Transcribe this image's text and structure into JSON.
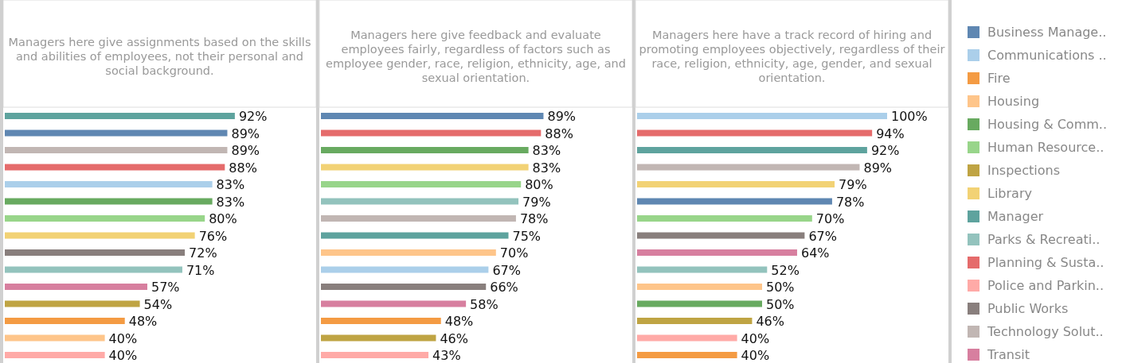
{
  "chart_data": [
    {
      "type": "bar",
      "orientation": "horizontal",
      "title": "Managers here give assignments based on the skills and abilities of employees, not their personal and social background.",
      "categories": [
        null,
        null,
        null,
        null,
        null,
        null,
        null,
        null,
        null,
        null,
        null,
        null,
        null,
        null,
        null
      ],
      "values": [
        92,
        89,
        89,
        88,
        83,
        83,
        80,
        76,
        72,
        71,
        57,
        54,
        48,
        40,
        40
      ],
      "value_labels": [
        "92%",
        "89%",
        "89%",
        "88%",
        "83%",
        "83%",
        "80%",
        "76%",
        "72%",
        "71%",
        "57%",
        "54%",
        "48%",
        "40%",
        "40%"
      ],
      "colors": [
        "#5ea39e",
        "#5f87b2",
        "#c1b6b3",
        "#e56b6b",
        "#abcfea",
        "#68aa60",
        "#98d58a",
        "#f2d275",
        "#897f7d",
        "#93c3bd",
        "#d77f9f",
        "#bfa443",
        "#f49b43",
        "#fec58a",
        "#ffaaa7"
      ]
    },
    {
      "type": "bar",
      "orientation": "horizontal",
      "title": "Managers here give feedback and evaluate employees fairly, regardless of factors such as employee gender, race, religion, ethnicity, age, and sexual orientation.",
      "categories": [
        null,
        null,
        null,
        null,
        null,
        null,
        null,
        null,
        null,
        null,
        null,
        null,
        null,
        null,
        null
      ],
      "values": [
        89,
        88,
        83,
        83,
        80,
        79,
        78,
        75,
        70,
        67,
        66,
        58,
        48,
        46,
        43
      ],
      "value_labels": [
        "89%",
        "88%",
        "83%",
        "83%",
        "80%",
        "79%",
        "78%",
        "75%",
        "70%",
        "67%",
        "66%",
        "58%",
        "48%",
        "46%",
        "43%"
      ],
      "colors": [
        "#5f87b2",
        "#e56b6b",
        "#68aa60",
        "#f2d275",
        "#98d58a",
        "#93c3bd",
        "#c1b6b3",
        "#5ea39e",
        "#fec58a",
        "#abcfea",
        "#897f7d",
        "#d77f9f",
        "#f49b43",
        "#bfa443",
        "#ffaaa7"
      ]
    },
    {
      "type": "bar",
      "orientation": "horizontal",
      "title": "Managers here have a track record of hiring and promoting employees objectively, regardless of their race, religion, ethnicity, age, gender, and sexual orientation.",
      "categories": [
        null,
        null,
        null,
        null,
        null,
        null,
        null,
        null,
        null,
        null,
        null,
        null,
        null,
        null,
        null
      ],
      "legend": "right",
      "series": [
        {
          "name": "Business Manage..",
          "color": "#5f87b2",
          "values": [
            null,
            null,
            null,
            null,
            null,
            78,
            null,
            null,
            null,
            null,
            null,
            null,
            null,
            null,
            null
          ],
          "value_labels": [
            null,
            null,
            null,
            null,
            null,
            "78%",
            null,
            null,
            null,
            null,
            null,
            null,
            null,
            null,
            null
          ]
        },
        {
          "name": "Communications ..",
          "color": "#abcfea",
          "values": [
            100,
            null,
            null,
            null,
            null,
            null,
            null,
            null,
            null,
            null,
            null,
            null,
            null,
            null,
            null
          ],
          "value_labels": [
            "100%",
            null,
            null,
            null,
            null,
            null,
            null,
            null,
            null,
            null,
            null,
            null,
            null,
            null,
            null
          ]
        },
        {
          "name": "Fire",
          "color": "#f49b43",
          "values": [
            null,
            null,
            null,
            null,
            null,
            null,
            null,
            null,
            null,
            null,
            null,
            null,
            null,
            null,
            40
          ],
          "value_labels": [
            null,
            null,
            null,
            null,
            null,
            null,
            null,
            null,
            null,
            null,
            null,
            null,
            null,
            null,
            "40%"
          ]
        },
        {
          "name": "Housing",
          "color": "#fec58a",
          "values": [
            null,
            null,
            null,
            null,
            null,
            null,
            null,
            null,
            null,
            null,
            50,
            null,
            null,
            null,
            null
          ],
          "value_labels": [
            null,
            null,
            null,
            null,
            null,
            null,
            null,
            null,
            null,
            null,
            "50%",
            null,
            null,
            null,
            null
          ]
        },
        {
          "name": "Housing & Comm..",
          "color": "#68aa60",
          "values": [
            null,
            null,
            null,
            null,
            null,
            null,
            null,
            null,
            null,
            null,
            null,
            50,
            null,
            null,
            null
          ],
          "value_labels": [
            null,
            null,
            null,
            null,
            null,
            null,
            null,
            null,
            null,
            null,
            null,
            "50%",
            null,
            null,
            null
          ]
        },
        {
          "name": "Human Resource..",
          "color": "#98d58a",
          "values": [
            null,
            null,
            null,
            null,
            null,
            null,
            70,
            null,
            null,
            null,
            null,
            null,
            null,
            null,
            null
          ],
          "value_labels": [
            null,
            null,
            null,
            null,
            null,
            null,
            "70%",
            null,
            null,
            null,
            null,
            null,
            null,
            null,
            null
          ]
        },
        {
          "name": "Inspections",
          "color": "#bfa443",
          "values": [
            null,
            null,
            null,
            null,
            null,
            null,
            null,
            null,
            null,
            null,
            null,
            null,
            46,
            null,
            null
          ],
          "value_labels": [
            null,
            null,
            null,
            null,
            null,
            null,
            null,
            null,
            null,
            null,
            null,
            null,
            "46%",
            null,
            null
          ]
        },
        {
          "name": "Library",
          "color": "#f2d275",
          "values": [
            null,
            null,
            null,
            null,
            79,
            null,
            null,
            null,
            null,
            null,
            null,
            null,
            null,
            null,
            null
          ],
          "value_labels": [
            null,
            null,
            null,
            null,
            "79%",
            null,
            null,
            null,
            null,
            null,
            null,
            null,
            null,
            null,
            null
          ]
        },
        {
          "name": "Manager",
          "color": "#5ea39e",
          "values": [
            null,
            null,
            92,
            null,
            null,
            null,
            null,
            null,
            null,
            null,
            null,
            null,
            null,
            null,
            null
          ],
          "value_labels": [
            null,
            null,
            "92%",
            null,
            null,
            null,
            null,
            null,
            null,
            null,
            null,
            null,
            null,
            null,
            null
          ]
        },
        {
          "name": "Parks & Recreati..",
          "color": "#93c3bd",
          "values": [
            null,
            null,
            null,
            null,
            null,
            null,
            null,
            null,
            null,
            52,
            null,
            null,
            null,
            null,
            null
          ],
          "value_labels": [
            null,
            null,
            null,
            null,
            null,
            null,
            null,
            null,
            null,
            "52%",
            null,
            null,
            null,
            null,
            null
          ]
        },
        {
          "name": "Planning & Susta..",
          "color": "#e56b6b",
          "values": [
            null,
            94,
            null,
            null,
            null,
            null,
            null,
            null,
            null,
            null,
            null,
            null,
            null,
            null,
            null
          ],
          "value_labels": [
            null,
            "94%",
            null,
            null,
            null,
            null,
            null,
            null,
            null,
            null,
            null,
            null,
            null,
            null,
            null
          ]
        },
        {
          "name": "Police and Parkin..",
          "color": "#ffaaa7",
          "values": [
            null,
            null,
            null,
            null,
            null,
            null,
            null,
            null,
            null,
            null,
            null,
            null,
            null,
            40,
            null
          ],
          "value_labels": [
            null,
            null,
            null,
            null,
            null,
            null,
            null,
            null,
            null,
            null,
            null,
            null,
            null,
            "40%",
            null
          ]
        },
        {
          "name": "Public Works",
          "color": "#897f7d",
          "values": [
            null,
            null,
            null,
            null,
            null,
            null,
            null,
            67,
            null,
            null,
            null,
            null,
            null,
            null,
            null
          ],
          "value_labels": [
            null,
            null,
            null,
            null,
            null,
            null,
            null,
            "67%",
            null,
            null,
            null,
            null,
            null,
            null,
            null
          ]
        },
        {
          "name": "Technology Solut..",
          "color": "#c1b6b3",
          "values": [
            null,
            null,
            null,
            89,
            null,
            null,
            null,
            null,
            null,
            null,
            null,
            null,
            null,
            null,
            null
          ],
          "value_labels": [
            null,
            null,
            null,
            "89%",
            null,
            null,
            null,
            null,
            null,
            null,
            null,
            null,
            null,
            null,
            null
          ]
        },
        {
          "name": "Transit",
          "color": "#d77f9f",
          "values": [
            null,
            null,
            null,
            null,
            null,
            null,
            null,
            null,
            64,
            null,
            null,
            null,
            null,
            null,
            null
          ],
          "value_labels": [
            null,
            null,
            null,
            null,
            null,
            null,
            null,
            null,
            "64%",
            null,
            null,
            null,
            null,
            null,
            null
          ]
        }
      ]
    }
  ]
}
